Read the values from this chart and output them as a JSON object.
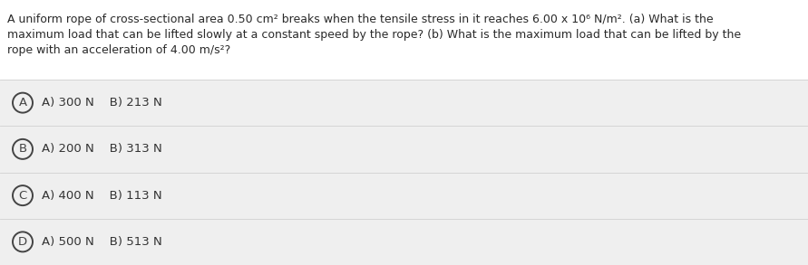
{
  "question_line1": "A uniform rope of cross-sectional area 0.50 cm² breaks when the tensile stress in it reaches 6.00 x 10⁶ N/m². (a) What is the",
  "question_line2": "maximum load that can be lifted slowly at a constant speed by the rope? (b) What is the maximum load that can be lifted by the",
  "question_line3": "rope with an acceleration of 4.00 m/s²?",
  "options": [
    {
      "label": "A",
      "text": "A) 300 N    B) 213 N"
    },
    {
      "label": "B",
      "text": "A) 200 N    B) 313 N"
    },
    {
      "label": "C",
      "text": "A) 400 N    B) 113 N"
    },
    {
      "label": "D",
      "text": "A) 500 N    B) 513 N"
    }
  ],
  "bg_color": "#ffffff",
  "option_bg": "#efefef",
  "option_border": "#d0d0d0",
  "circle_edgecolor": "#444444",
  "text_color": "#333333",
  "question_text_color": "#2a2a2a",
  "font_size_question": 9.0,
  "font_size_option": 9.5,
  "font_size_label": 9.5
}
